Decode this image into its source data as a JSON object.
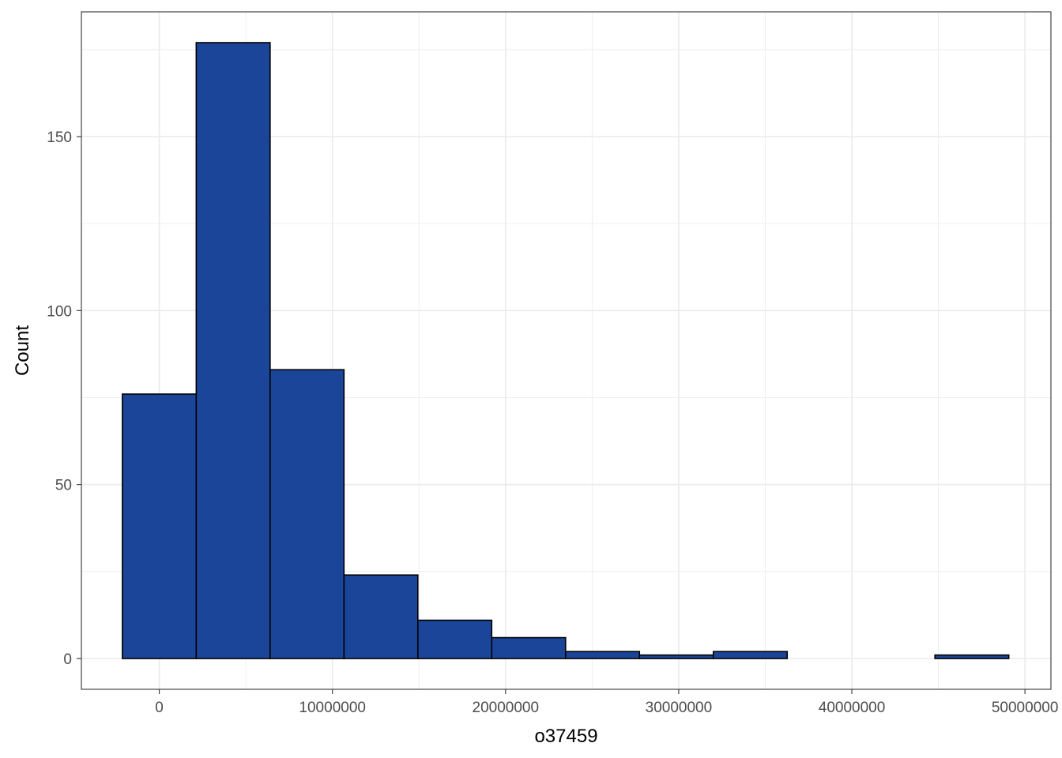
{
  "chart_data": {
    "type": "bar",
    "subtype": "histogram",
    "title": "",
    "xlabel": "o37459",
    "ylabel": "Count",
    "bins": [
      {
        "x0": -2133333,
        "x1": 2133333,
        "count": 76
      },
      {
        "x0": 2133333,
        "x1": 6400000,
        "count": 177
      },
      {
        "x0": 6400000,
        "x1": 10666667,
        "count": 83
      },
      {
        "x0": 10666667,
        "x1": 14933333,
        "count": 24
      },
      {
        "x0": 14933333,
        "x1": 19200000,
        "count": 11
      },
      {
        "x0": 19200000,
        "x1": 23466667,
        "count": 6
      },
      {
        "x0": 23466667,
        "x1": 27733333,
        "count": 2
      },
      {
        "x0": 27733333,
        "x1": 32000000,
        "count": 1
      },
      {
        "x0": 32000000,
        "x1": 36266667,
        "count": 2
      },
      {
        "x0": 36266667,
        "x1": 40533333,
        "count": 0
      },
      {
        "x0": 40533333,
        "x1": 44800000,
        "count": 0
      },
      {
        "x0": 44800000,
        "x1": 49066667,
        "count": 1
      }
    ],
    "x_ticks": [
      0,
      10000000,
      20000000,
      30000000,
      40000000,
      50000000
    ],
    "x_tick_labels": [
      "0",
      "10000000",
      "20000000",
      "30000000",
      "40000000",
      "50000000"
    ],
    "y_ticks": [
      0,
      50,
      100,
      150
    ],
    "y_tick_labels": [
      "0",
      "50",
      "100",
      "150"
    ],
    "xlim": [
      -4500000,
      51500000
    ],
    "ylim": [
      -8.85,
      185.85
    ],
    "grid": true,
    "legend": "none",
    "colors": {
      "bar_fill": "#1a4599",
      "bar_stroke": "#000000",
      "grid": "#ebebeb",
      "panel_border": "#333333"
    }
  }
}
